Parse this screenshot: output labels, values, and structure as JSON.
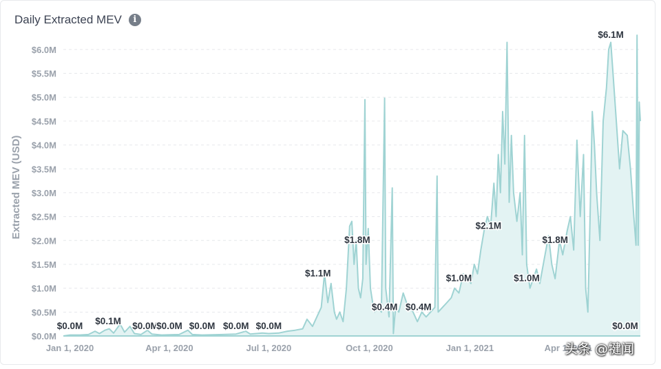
{
  "header": {
    "title": "Daily Extracted MEV",
    "info_icon": "info-icon"
  },
  "watermark": "头条 @犍闻",
  "colors": {
    "line": "#9fd3d3",
    "fill": "#e3f3f3",
    "grid": "#e6e8eb",
    "axis_text": "#9aa1ab",
    "label": "#2f3640"
  },
  "chart_data": {
    "type": "area",
    "title": "Daily Extracted MEV",
    "xlabel": "",
    "ylabel": "Extracted MEV (USD)",
    "ylim": [
      0,
      6.2
    ],
    "yticks": [
      0,
      0.5,
      1.0,
      1.5,
      2.0,
      2.5,
      3.0,
      3.5,
      4.0,
      4.5,
      5.0,
      5.5,
      6.0
    ],
    "ytick_labels": [
      "$0.0M",
      "$0.5M",
      "$1.0M",
      "$1.5M",
      "$2.0M",
      "$2.5M",
      "$3.0M",
      "$3.5M",
      "$4.0M",
      "$4.5M",
      "$5.0M",
      "$5.5M",
      "$6.0M"
    ],
    "x_start": "2019-12-26",
    "x_end": "2021-06-06",
    "xticks": [
      {
        "date": "2020-01-01",
        "label": "Jan 1, 2020"
      },
      {
        "date": "2020-04-01",
        "label": "Apr 1, 2020"
      },
      {
        "date": "2020-07-01",
        "label": "Jul 1, 2020"
      },
      {
        "date": "2020-10-01",
        "label": "Oct 1, 2020"
      },
      {
        "date": "2021-01-01",
        "label": "Jan 1, 2021"
      },
      {
        "date": "2021-04-01",
        "label": "Apr 1, 2021"
      }
    ],
    "series": [
      {
        "name": "Extracted MEV",
        "points": [
          [
            "2019-12-26",
            0.0
          ],
          [
            "2020-01-01",
            0.02
          ],
          [
            "2020-01-10",
            0.02
          ],
          [
            "2020-01-18",
            0.03
          ],
          [
            "2020-01-24",
            0.1
          ],
          [
            "2020-01-28",
            0.05
          ],
          [
            "2020-02-02",
            0.12
          ],
          [
            "2020-02-06",
            0.15
          ],
          [
            "2020-02-10",
            0.06
          ],
          [
            "2020-02-16",
            0.25
          ],
          [
            "2020-02-20",
            0.08
          ],
          [
            "2020-02-25",
            0.2
          ],
          [
            "2020-02-29",
            0.05
          ],
          [
            "2020-03-06",
            0.03
          ],
          [
            "2020-03-12",
            0.12
          ],
          [
            "2020-03-16",
            0.04
          ],
          [
            "2020-03-25",
            0.02
          ],
          [
            "2020-04-10",
            0.03
          ],
          [
            "2020-04-18",
            0.12
          ],
          [
            "2020-04-22",
            0.03
          ],
          [
            "2020-05-01",
            0.02
          ],
          [
            "2020-05-20",
            0.03
          ],
          [
            "2020-06-01",
            0.04
          ],
          [
            "2020-06-10",
            0.1
          ],
          [
            "2020-06-14",
            0.04
          ],
          [
            "2020-06-25",
            0.06
          ],
          [
            "2020-07-01",
            0.05
          ],
          [
            "2020-07-10",
            0.06
          ],
          [
            "2020-07-18",
            0.1
          ],
          [
            "2020-07-25",
            0.12
          ],
          [
            "2020-08-01",
            0.15
          ],
          [
            "2020-08-05",
            0.35
          ],
          [
            "2020-08-10",
            0.2
          ],
          [
            "2020-08-14",
            0.4
          ],
          [
            "2020-08-18",
            0.6
          ],
          [
            "2020-08-21",
            1.3
          ],
          [
            "2020-08-24",
            0.7
          ],
          [
            "2020-08-27",
            1.1
          ],
          [
            "2020-08-30",
            0.5
          ],
          [
            "2020-09-01",
            0.35
          ],
          [
            "2020-09-04",
            0.5
          ],
          [
            "2020-09-07",
            0.3
          ],
          [
            "2020-09-10",
            1.0
          ],
          [
            "2020-09-13",
            2.3
          ],
          [
            "2020-09-15",
            2.4
          ],
          [
            "2020-09-17",
            1.5
          ],
          [
            "2020-09-19",
            2.0
          ],
          [
            "2020-09-21",
            1.0
          ],
          [
            "2020-09-23",
            0.8
          ],
          [
            "2020-09-25",
            1.2
          ],
          [
            "2020-09-27",
            4.95
          ],
          [
            "2020-09-28",
            1.5
          ],
          [
            "2020-09-30",
            2.25
          ],
          [
            "2020-10-02",
            1.0
          ],
          [
            "2020-10-04",
            0.7
          ],
          [
            "2020-10-06",
            0.5
          ],
          [
            "2020-10-09",
            0.6
          ],
          [
            "2020-10-12",
            0.5
          ],
          [
            "2020-10-15",
            4.98
          ],
          [
            "2020-10-16",
            1.0
          ],
          [
            "2020-10-19",
            0.4
          ],
          [
            "2020-10-22",
            3.1
          ],
          [
            "2020-10-23",
            0.05
          ],
          [
            "2020-10-25",
            0.6
          ],
          [
            "2020-10-28",
            0.5
          ],
          [
            "2020-11-01",
            0.9
          ],
          [
            "2020-11-04",
            0.7
          ],
          [
            "2020-11-07",
            0.6
          ],
          [
            "2020-11-10",
            0.5
          ],
          [
            "2020-11-14",
            0.3
          ],
          [
            "2020-11-18",
            0.5
          ],
          [
            "2020-11-22",
            0.4
          ],
          [
            "2020-11-26",
            0.5
          ],
          [
            "2020-11-30",
            0.6
          ],
          [
            "2020-12-02",
            3.35
          ],
          [
            "2020-12-03",
            0.5
          ],
          [
            "2020-12-07",
            0.6
          ],
          [
            "2020-12-11",
            0.7
          ],
          [
            "2020-12-15",
            0.8
          ],
          [
            "2020-12-18",
            1.0
          ],
          [
            "2020-12-22",
            0.9
          ],
          [
            "2020-12-26",
            1.3
          ],
          [
            "2020-12-30",
            1.2
          ],
          [
            "2021-01-02",
            1.1
          ],
          [
            "2021-01-05",
            1.5
          ],
          [
            "2021-01-08",
            1.3
          ],
          [
            "2021-01-11",
            1.8
          ],
          [
            "2021-01-14",
            2.2
          ],
          [
            "2021-01-17",
            2.5
          ],
          [
            "2021-01-20",
            2.3
          ],
          [
            "2021-01-23",
            3.2
          ],
          [
            "2021-01-25",
            2.5
          ],
          [
            "2021-01-27",
            3.8
          ],
          [
            "2021-01-29",
            3.0
          ],
          [
            "2021-01-31",
            4.7
          ],
          [
            "2021-02-02",
            3.6
          ],
          [
            "2021-02-04",
            6.15
          ],
          [
            "2021-02-06",
            2.8
          ],
          [
            "2021-02-08",
            4.2
          ],
          [
            "2021-02-10",
            3.0
          ],
          [
            "2021-02-13",
            2.4
          ],
          [
            "2021-02-16",
            3.0
          ],
          [
            "2021-02-18",
            1.7
          ],
          [
            "2021-02-20",
            4.2
          ],
          [
            "2021-02-22",
            1.5
          ],
          [
            "2021-02-25",
            1.0
          ],
          [
            "2021-02-28",
            1.2
          ],
          [
            "2021-03-03",
            1.4
          ],
          [
            "2021-03-06",
            1.1
          ],
          [
            "2021-03-10",
            1.6
          ],
          [
            "2021-03-14",
            2.1
          ],
          [
            "2021-03-17",
            1.5
          ],
          [
            "2021-03-20",
            1.2
          ],
          [
            "2021-03-24",
            2.0
          ],
          [
            "2021-03-27",
            1.7
          ],
          [
            "2021-03-31",
            2.2
          ],
          [
            "2021-04-03",
            2.5
          ],
          [
            "2021-04-06",
            1.8
          ],
          [
            "2021-04-09",
            4.1
          ],
          [
            "2021-04-12",
            2.5
          ],
          [
            "2021-04-15",
            3.8
          ],
          [
            "2021-04-17",
            1.0
          ],
          [
            "2021-04-19",
            0.5
          ],
          [
            "2021-04-21",
            2.5
          ],
          [
            "2021-04-23",
            4.7
          ],
          [
            "2021-04-25",
            4.0
          ],
          [
            "2021-04-27",
            3.0
          ],
          [
            "2021-04-30",
            2.0
          ],
          [
            "2021-05-03",
            4.5
          ],
          [
            "2021-05-06",
            5.2
          ],
          [
            "2021-05-08",
            6.0
          ],
          [
            "2021-05-10",
            6.15
          ],
          [
            "2021-05-12",
            5.5
          ],
          [
            "2021-05-15",
            4.5
          ],
          [
            "2021-05-18",
            3.5
          ],
          [
            "2021-05-21",
            4.3
          ],
          [
            "2021-05-25",
            4.2
          ],
          [
            "2021-05-28",
            3.5
          ],
          [
            "2021-05-31",
            2.5
          ],
          [
            "2021-06-02",
            1.9
          ],
          [
            "2021-06-03",
            6.3
          ],
          [
            "2021-06-04",
            1.9
          ],
          [
            "2021-06-05",
            4.9
          ],
          [
            "2021-06-06",
            4.5
          ]
        ]
      }
    ],
    "data_labels": [
      {
        "date": "2020-01-01",
        "value": 0.0,
        "text": "$0.0M"
      },
      {
        "date": "2020-02-05",
        "value": 0.1,
        "text": "$0.1M"
      },
      {
        "date": "2020-03-10",
        "value": 0.0,
        "text": "$0.0M"
      },
      {
        "date": "2020-04-01",
        "value": 0.0,
        "text": "$0.0M"
      },
      {
        "date": "2020-05-01",
        "value": 0.0,
        "text": "$0.0M"
      },
      {
        "date": "2020-06-01",
        "value": 0.0,
        "text": "$0.0M"
      },
      {
        "date": "2020-07-01",
        "value": 0.0,
        "text": "$0.0M"
      },
      {
        "date": "2020-08-15",
        "value": 1.1,
        "text": "$1.1M"
      },
      {
        "date": "2020-09-20",
        "value": 1.8,
        "text": "$1.8M"
      },
      {
        "date": "2020-10-15",
        "value": 0.4,
        "text": "$0.4M"
      },
      {
        "date": "2020-11-15",
        "value": 0.4,
        "text": "$0.4M"
      },
      {
        "date": "2020-12-22",
        "value": 1.0,
        "text": "$1.0M"
      },
      {
        "date": "2021-01-18",
        "value": 2.1,
        "text": "$2.1M"
      },
      {
        "date": "2021-02-22",
        "value": 1.0,
        "text": "$1.0M"
      },
      {
        "date": "2021-03-20",
        "value": 1.8,
        "text": "$1.8M"
      },
      {
        "date": "2021-05-10",
        "value": 6.1,
        "text": "$6.1M"
      },
      {
        "date": "2021-06-10",
        "value": 0.0,
        "text": "$0.0M"
      }
    ]
  }
}
